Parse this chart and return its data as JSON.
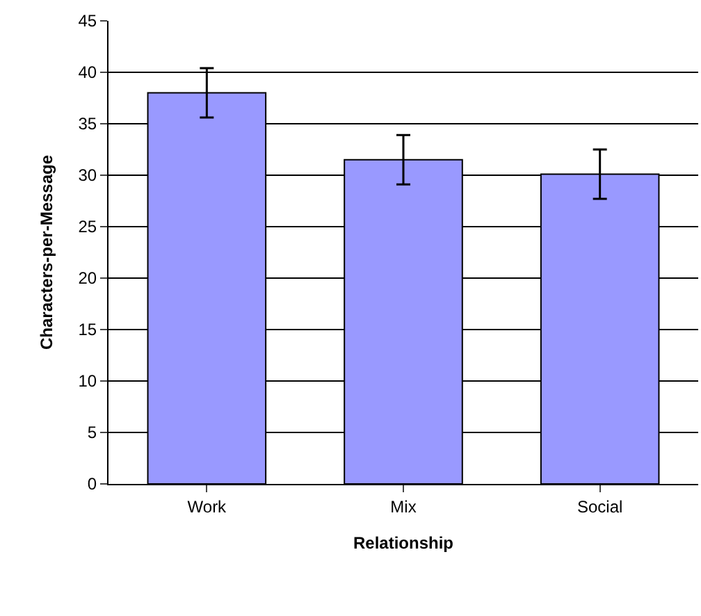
{
  "chart_data": {
    "type": "bar",
    "xlabel": "Relationship",
    "ylabel": "Characters-per-Message",
    "categories": [
      "Work",
      "Mix",
      "Social"
    ],
    "values": [
      38,
      31.5,
      30.1
    ],
    "errors": [
      2.4,
      2.4,
      2.4
    ],
    "color": "#9999ff",
    "ylim": [
      0,
      45
    ],
    "yticks": [
      0,
      5,
      10,
      15,
      20,
      25,
      30,
      35,
      40,
      45
    ],
    "grid": "y"
  }
}
